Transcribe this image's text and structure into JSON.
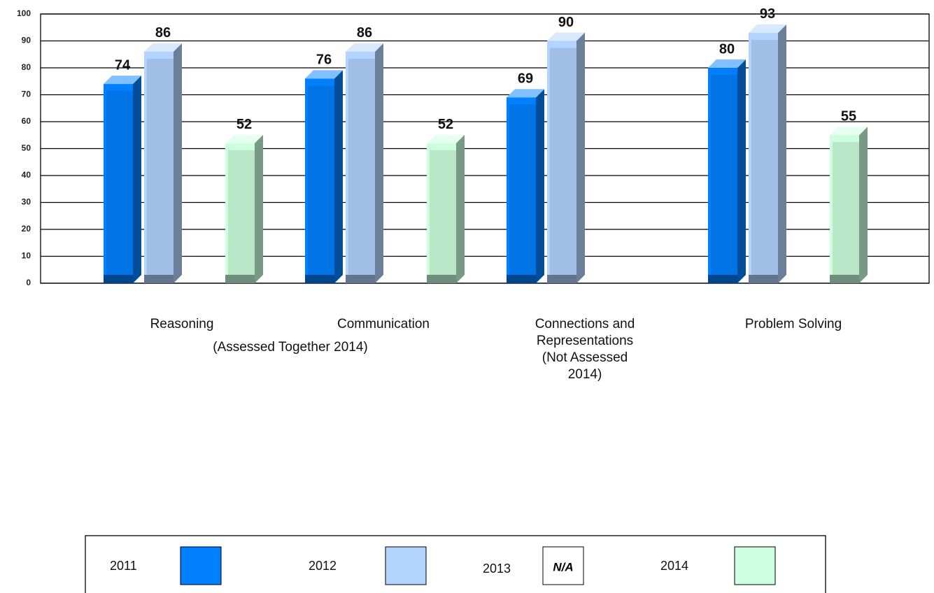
{
  "chart_data": {
    "type": "bar",
    "categories": [
      "Reasoning",
      "Communication",
      "Connections and Representations (Not Assessed 2014)",
      "Problem Solving"
    ],
    "annotation": "(Assessed Together 2014)",
    "series": [
      {
        "name": "2011",
        "color": "#0080ff",
        "values": [
          74,
          76,
          69,
          80
        ]
      },
      {
        "name": "2012",
        "color": "#b3d4ff",
        "values": [
          86,
          86,
          90,
          93
        ]
      },
      {
        "name": "2013",
        "color": "#ffffff",
        "values": [
          null,
          null,
          null,
          null
        ],
        "legend_text": "N/A"
      },
      {
        "name": "2014",
        "color": "#ccffdd",
        "values": [
          52,
          52,
          null,
          55
        ]
      }
    ],
    "ylim": [
      0,
      100
    ],
    "yticks": [
      0,
      10,
      20,
      30,
      40,
      50,
      60,
      70,
      80,
      90,
      100
    ],
    "grid": true,
    "legend": "bottom"
  }
}
